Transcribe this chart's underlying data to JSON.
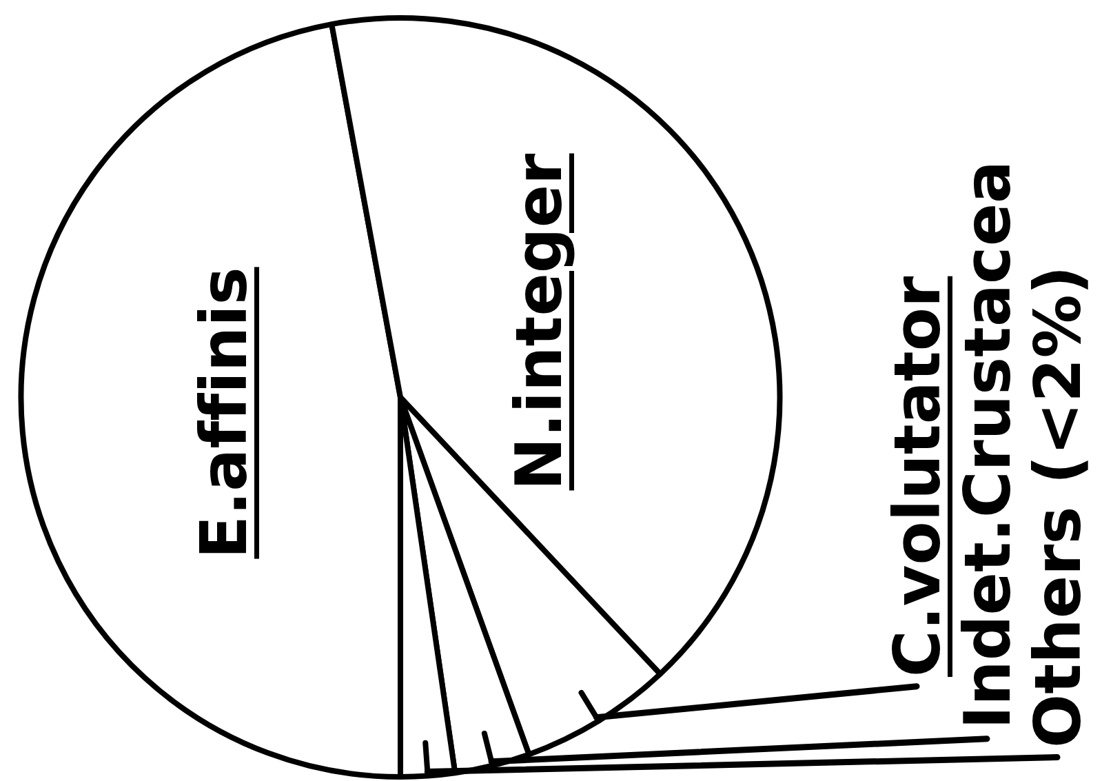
{
  "chart_data": {
    "type": "pie",
    "categories": [
      "E.affinis",
      "N.integer",
      "C.volutator",
      "Indet.Crustacea",
      "Others (<2%)"
    ],
    "values": [
      47.1,
      40.9,
      6.5,
      3.2,
      2.3
    ],
    "colors": [
      "#ffffff",
      "#ffffff",
      "#ffffff",
      "#ffffff",
      "#ffffff"
    ]
  }
}
